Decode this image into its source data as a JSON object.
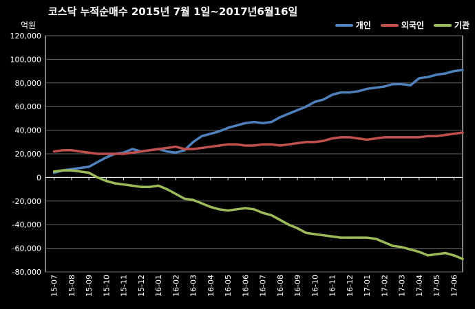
{
  "chart_data": {
    "type": "line",
    "title": "코스닥  누적순매수 2015년 7월 1일~2017년6월16일",
    "ylabel": "억원",
    "xlabel": "",
    "ylim": [
      -80000,
      120000
    ],
    "yticks": [
      120000,
      100000,
      80000,
      60000,
      40000,
      20000,
      0,
      -20000,
      -40000,
      -60000,
      -80000
    ],
    "ytick_labels": [
      "120,000",
      "100,000",
      "80,000",
      "60,000",
      "40,000",
      "20,000",
      "0",
      "-20,000",
      "-40,000",
      "-60,000",
      "-80,000"
    ],
    "x_ticks": [
      "15-07",
      "15-08",
      "15-09",
      "15-10",
      "15-11",
      "15-12",
      "16-01",
      "16-02",
      "16-03",
      "16-04",
      "16-05",
      "16-06",
      "16-07",
      "16-08",
      "16-09",
      "16-10",
      "16-11",
      "16-12",
      "17-01",
      "17-02",
      "17-03",
      "17-04",
      "17-05",
      "17-06"
    ],
    "grid": true,
    "legend_position": "top-right",
    "series": [
      {
        "name": "개인",
        "color": "#4f81bd",
        "x": [
          0,
          0.5,
          1,
          1.5,
          2,
          2.5,
          3,
          3.5,
          4,
          4.5,
          5,
          5.5,
          6,
          6.5,
          7,
          7.5,
          8,
          8.5,
          9,
          9.5,
          10,
          10.5,
          11,
          11.5,
          12,
          12.5,
          13,
          13.5,
          14,
          14.5,
          15,
          15.5,
          16,
          16.5,
          17,
          17.5,
          18,
          18.5,
          19,
          19.5,
          20,
          20.5,
          21,
          21.5,
          22,
          22.5,
          23,
          23.5
        ],
        "values": [
          4000,
          6000,
          7000,
          8000,
          9000,
          13000,
          17000,
          20000,
          21000,
          24000,
          22000,
          23000,
          24000,
          22000,
          21000,
          23000,
          30000,
          35000,
          37000,
          39000,
          42000,
          44000,
          46000,
          47000,
          46000,
          47000,
          51000,
          54000,
          57000,
          60000,
          64000,
          66000,
          70000,
          72000,
          72000,
          73000,
          75000,
          76000,
          77000,
          79000,
          79000,
          78000,
          84000,
          85000,
          87000,
          88000,
          90000,
          91000
        ]
      },
      {
        "name": "외국인",
        "color": "#c0504d",
        "x": [
          0,
          0.5,
          1,
          1.5,
          2,
          2.5,
          3,
          3.5,
          4,
          4.5,
          5,
          5.5,
          6,
          6.5,
          7,
          7.5,
          8,
          8.5,
          9,
          9.5,
          10,
          10.5,
          11,
          11.5,
          12,
          12.5,
          13,
          13.5,
          14,
          14.5,
          15,
          15.5,
          16,
          16.5,
          17,
          17.5,
          18,
          18.5,
          19,
          19.5,
          20,
          20.5,
          21,
          21.5,
          22,
          22.5,
          23,
          23.5
        ],
        "values": [
          22000,
          23000,
          23000,
          22000,
          21000,
          20000,
          20000,
          20000,
          20000,
          21000,
          22000,
          23000,
          24000,
          25000,
          26000,
          24000,
          24000,
          25000,
          26000,
          27000,
          28000,
          28000,
          27000,
          27000,
          28000,
          28000,
          27000,
          28000,
          29000,
          30000,
          30000,
          31000,
          33000,
          34000,
          34000,
          33000,
          32000,
          33000,
          34000,
          34000,
          34000,
          34000,
          34000,
          35000,
          35000,
          36000,
          37000,
          38000
        ]
      },
      {
        "name": "기관",
        "color": "#9bbb59",
        "x": [
          0,
          0.5,
          1,
          1.5,
          2,
          2.5,
          3,
          3.5,
          4,
          4.5,
          5,
          5.5,
          6,
          6.5,
          7,
          7.5,
          8,
          8.5,
          9,
          9.5,
          10,
          10.5,
          11,
          11.5,
          12,
          12.5,
          13,
          13.5,
          14,
          14.5,
          15,
          15.5,
          16,
          16.5,
          17,
          17.5,
          18,
          18.5,
          19,
          19.5,
          20,
          20.5,
          21,
          21.5,
          22,
          22.5,
          23,
          23.5
        ],
        "values": [
          5000,
          6000,
          6000,
          5000,
          4000,
          0,
          -3000,
          -5000,
          -6000,
          -7000,
          -8000,
          -8000,
          -7000,
          -10000,
          -14000,
          -18000,
          -19000,
          -22000,
          -25000,
          -27000,
          -28000,
          -27000,
          -26000,
          -27000,
          -30000,
          -32000,
          -36000,
          -40000,
          -43000,
          -47000,
          -48000,
          -49000,
          -50000,
          -51000,
          -51000,
          -51000,
          -51000,
          -52000,
          -55000,
          -58000,
          -59000,
          -61000,
          -63000,
          -66000,
          -65000,
          -64000,
          -66000,
          -69000
        ]
      }
    ]
  }
}
